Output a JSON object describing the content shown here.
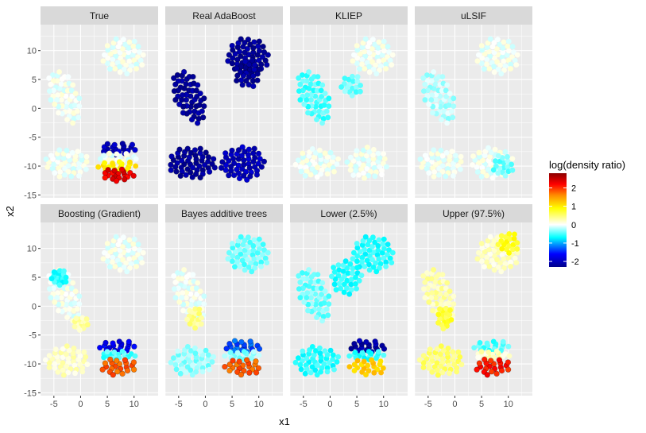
{
  "chart_data": {
    "type": "scatter",
    "facets": [
      {
        "title": "True",
        "blobs": [
          {
            "cx": -3,
            "cy": 2,
            "rx": 2.6,
            "ry": 5,
            "angle": 25,
            "v": 0
          },
          {
            "cx": 8,
            "cy": 9,
            "rx": 4,
            "ry": 3.2,
            "angle": 0,
            "v": 0
          },
          {
            "cx": -2.5,
            "cy": -9.5,
            "rx": 4.2,
            "ry": 2.6,
            "angle": 0,
            "v": 0
          },
          {
            "cx": 7,
            "cy": -7,
            "rx": 3.6,
            "ry": 1.1,
            "angle": 0,
            "v": -2
          },
          {
            "cx": 7,
            "cy": -8.5,
            "rx": 3.8,
            "ry": 0.8,
            "angle": 0,
            "v": 0
          },
          {
            "cx": 7,
            "cy": -10,
            "rx": 3.8,
            "ry": 0.9,
            "angle": 0,
            "v": 1
          },
          {
            "cx": 7,
            "cy": -11.5,
            "rx": 3.2,
            "ry": 1.1,
            "angle": 0,
            "v": 2.3
          }
        ]
      },
      {
        "title": "Real AdaBoost",
        "blobs": [
          {
            "cx": -3,
            "cy": 2,
            "rx": 2.6,
            "ry": 5,
            "angle": 25,
            "v": -2.2
          },
          {
            "cx": 8,
            "cy": 9,
            "rx": 4,
            "ry": 3.2,
            "angle": 0,
            "v": -2.2
          },
          {
            "cx": 8,
            "cy": 6,
            "rx": 2.5,
            "ry": 2.5,
            "angle": 0,
            "v": -2.2
          },
          {
            "cx": -2.5,
            "cy": -9.5,
            "rx": 4.5,
            "ry": 2.8,
            "angle": 0,
            "v": -2.2
          },
          {
            "cx": 7,
            "cy": -9.5,
            "rx": 4.2,
            "ry": 3,
            "angle": 0,
            "v": -2
          }
        ]
      },
      {
        "title": "KLIEP",
        "blobs": [
          {
            "cx": -3,
            "cy": 2,
            "rx": 2.6,
            "ry": 5,
            "angle": 25,
            "v": -0.5
          },
          {
            "cx": 8,
            "cy": 9,
            "rx": 4,
            "ry": 3.2,
            "angle": 0,
            "v": 0
          },
          {
            "cx": 4,
            "cy": 4,
            "rx": 2,
            "ry": 2,
            "angle": 0,
            "v": -0.4
          },
          {
            "cx": -2.5,
            "cy": -9.5,
            "rx": 4.2,
            "ry": 2.6,
            "angle": 0,
            "v": 0
          },
          {
            "cx": 7,
            "cy": -9.5,
            "rx": 4,
            "ry": 2.8,
            "angle": 0,
            "v": 0
          }
        ]
      },
      {
        "title": "uLSIF",
        "blobs": [
          {
            "cx": -3,
            "cy": 2,
            "rx": 2.6,
            "ry": 5,
            "angle": 25,
            "v": -0.2
          },
          {
            "cx": 8,
            "cy": 9,
            "rx": 4,
            "ry": 3.2,
            "angle": 0,
            "v": 0
          },
          {
            "cx": -2.5,
            "cy": -9.5,
            "rx": 4.2,
            "ry": 2.6,
            "angle": 0,
            "v": 0
          },
          {
            "cx": 7,
            "cy": -9.5,
            "rx": 4,
            "ry": 2.8,
            "angle": 0,
            "v": 0
          },
          {
            "cx": 9,
            "cy": -10,
            "rx": 2,
            "ry": 2,
            "angle": 0,
            "v": -0.4
          }
        ]
      },
      {
        "title": "Boosting (Gradient)",
        "blobs": [
          {
            "cx": -3,
            "cy": 2,
            "rx": 2.6,
            "ry": 5,
            "angle": 25,
            "v": 0
          },
          {
            "cx": 8,
            "cy": 9,
            "rx": 4,
            "ry": 3.2,
            "angle": 0,
            "v": 0
          },
          {
            "cx": -4,
            "cy": 5,
            "rx": 1.5,
            "ry": 1.5,
            "angle": 0,
            "v": -0.6
          },
          {
            "cx": 0,
            "cy": -3,
            "rx": 1.5,
            "ry": 1.2,
            "angle": 0,
            "v": 0.3
          },
          {
            "cx": -2.5,
            "cy": -9.5,
            "rx": 4.2,
            "ry": 2.6,
            "angle": 0,
            "v": 0.2
          },
          {
            "cx": 7,
            "cy": -7,
            "rx": 3.5,
            "ry": 1.1,
            "angle": 0,
            "v": -1.7
          },
          {
            "cx": 7,
            "cy": -8.5,
            "rx": 3.5,
            "ry": 0.8,
            "angle": 0,
            "v": -0.5
          },
          {
            "cx": 7,
            "cy": -10.5,
            "rx": 3.5,
            "ry": 1.5,
            "angle": 0,
            "v": 1.8
          }
        ]
      },
      {
        "title": "Bayes additive trees",
        "blobs": [
          {
            "cx": -3,
            "cy": 2,
            "rx": 2.6,
            "ry": 5,
            "angle": 25,
            "v": 0
          },
          {
            "cx": 8,
            "cy": 9,
            "rx": 4,
            "ry": 3.2,
            "angle": 0,
            "v": -0.4
          },
          {
            "cx": -2,
            "cy": -2,
            "rx": 1.5,
            "ry": 2,
            "angle": 0,
            "v": 0.4
          },
          {
            "cx": -2.5,
            "cy": -9.5,
            "rx": 4.2,
            "ry": 2.6,
            "angle": 0,
            "v": -0.3
          },
          {
            "cx": 7,
            "cy": -7,
            "rx": 3.5,
            "ry": 1.1,
            "angle": 0,
            "v": -1.3
          },
          {
            "cx": 7,
            "cy": -8.5,
            "rx": 3.5,
            "ry": 0.8,
            "angle": 0,
            "v": -0.3
          },
          {
            "cx": 7,
            "cy": -10.5,
            "rx": 3.5,
            "ry": 1.5,
            "angle": 0,
            "v": 1.8
          }
        ]
      },
      {
        "title": "Lower (2.5%)",
        "blobs": [
          {
            "cx": -3,
            "cy": 2,
            "rx": 2.6,
            "ry": 5,
            "angle": 25,
            "v": -0.4
          },
          {
            "cx": 8,
            "cy": 9,
            "rx": 4,
            "ry": 3.2,
            "angle": 0,
            "v": -0.6
          },
          {
            "cx": 3,
            "cy": 5,
            "rx": 3,
            "ry": 3,
            "angle": 0,
            "v": -0.6
          },
          {
            "cx": -2.5,
            "cy": -9.5,
            "rx": 4.2,
            "ry": 2.6,
            "angle": 0,
            "v": -0.6
          },
          {
            "cx": 7,
            "cy": -7,
            "rx": 3.5,
            "ry": 1.1,
            "angle": 0,
            "v": -2.1
          },
          {
            "cx": 7,
            "cy": -8.5,
            "rx": 3.5,
            "ry": 0.8,
            "angle": 0,
            "v": -0.6
          },
          {
            "cx": 7,
            "cy": -10.5,
            "rx": 3.5,
            "ry": 1.5,
            "angle": 0,
            "v": 1.2
          }
        ]
      },
      {
        "title": "Upper (97.5%)",
        "blobs": [
          {
            "cx": -3,
            "cy": 2,
            "rx": 2.6,
            "ry": 5,
            "angle": 25,
            "v": 0.3
          },
          {
            "cx": 8,
            "cy": 9,
            "rx": 4,
            "ry": 3.2,
            "angle": 0,
            "v": 0.2
          },
          {
            "cx": 10,
            "cy": 11,
            "rx": 2,
            "ry": 2,
            "angle": 0,
            "v": 0.8
          },
          {
            "cx": -2,
            "cy": -2,
            "rx": 1.5,
            "ry": 2,
            "angle": 0,
            "v": 0.7
          },
          {
            "cx": -2.5,
            "cy": -9.5,
            "rx": 4.2,
            "ry": 2.6,
            "angle": 0,
            "v": 0.5
          },
          {
            "cx": 7,
            "cy": -7,
            "rx": 3.5,
            "ry": 1.1,
            "angle": 0,
            "v": -0.5
          },
          {
            "cx": 7,
            "cy": -8.5,
            "rx": 3.5,
            "ry": 0.8,
            "angle": 0,
            "v": 0.2
          },
          {
            "cx": 7,
            "cy": -10.5,
            "rx": 3.5,
            "ry": 1.5,
            "angle": 0,
            "v": 2.1
          }
        ]
      }
    ],
    "xlabel": "x1",
    "ylabel": "x2",
    "xlim": [
      -7.5,
      14.5
    ],
    "ylim": [
      -15.5,
      14.5
    ],
    "xticks": [
      -5,
      0,
      5,
      10
    ],
    "yticks": [
      -15,
      -10,
      -5,
      0,
      5,
      10
    ],
    "legend": {
      "title": "log(density ratio)",
      "position": "right",
      "range": [
        -2.3,
        2.8
      ],
      "breaks": [
        2,
        1,
        0,
        -1,
        -2
      ],
      "labels": [
        "2",
        "1",
        "0",
        "-1",
        "-2"
      ]
    },
    "colorscale": [
      {
        "v": -2.3,
        "c": "#00008B"
      },
      {
        "v": -1.6,
        "c": "#0000FF"
      },
      {
        "v": -0.7,
        "c": "#00FFFF"
      },
      {
        "v": 0,
        "c": "#FFFFFF"
      },
      {
        "v": 0.9,
        "c": "#FFFF00"
      },
      {
        "v": 1.6,
        "c": "#FF8C00"
      },
      {
        "v": 2.2,
        "c": "#FF0000"
      },
      {
        "v": 2.8,
        "c": "#8B0000"
      }
    ],
    "colors": {
      "panel": "#EBEBEB",
      "grid_major": "#FFFFFF",
      "strip": "#D9D9D9",
      "tick": "#333333"
    }
  }
}
